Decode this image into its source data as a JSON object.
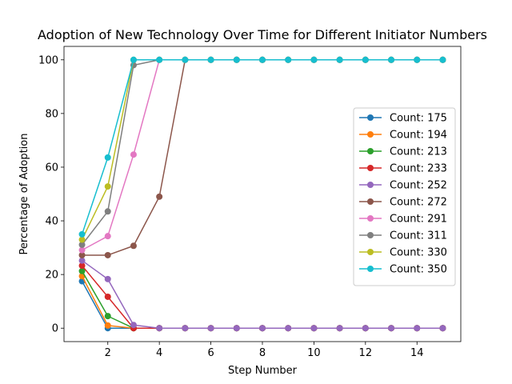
{
  "chart_data": {
    "type": "line",
    "title": "Adoption of New Technology Over Time for Different Initiator Numbers",
    "xlabel": "Step Number",
    "ylabel": "Percentage of Adoption",
    "xlim": [
      0.3,
      15.7
    ],
    "ylim": [
      -5,
      105
    ],
    "xticks": [
      2,
      4,
      6,
      8,
      10,
      12,
      14
    ],
    "yticks": [
      0,
      20,
      40,
      60,
      80,
      100
    ],
    "grid": false,
    "legend_position": "center-right",
    "x": [
      1,
      2,
      3,
      4,
      5,
      6,
      7,
      8,
      9,
      10,
      11,
      12,
      13,
      14,
      15
    ],
    "series": [
      {
        "name": "Count: 175",
        "color": "#1f77b4",
        "values": [
          17.5,
          0,
          0,
          0,
          0,
          0,
          0,
          0,
          0,
          0,
          0,
          0,
          0,
          0,
          0
        ]
      },
      {
        "name": "Count: 194",
        "color": "#ff7f0e",
        "values": [
          19.4,
          1.0,
          0,
          0,
          0,
          0,
          0,
          0,
          0,
          0,
          0,
          0,
          0,
          0,
          0
        ]
      },
      {
        "name": "Count: 213",
        "color": "#2ca02c",
        "values": [
          21.3,
          4.5,
          0,
          0,
          0,
          0,
          0,
          0,
          0,
          0,
          0,
          0,
          0,
          0,
          0
        ]
      },
      {
        "name": "Count: 233",
        "color": "#d62728",
        "values": [
          23.3,
          11.7,
          0,
          0,
          0,
          0,
          0,
          0,
          0,
          0,
          0,
          0,
          0,
          0,
          0
        ]
      },
      {
        "name": "Count: 252",
        "color": "#9467bd",
        "values": [
          25.2,
          18.3,
          1.2,
          0,
          0,
          0,
          0,
          0,
          0,
          0,
          0,
          0,
          0,
          0,
          0
        ]
      },
      {
        "name": "Count: 272",
        "color": "#8c564b",
        "values": [
          27.2,
          27.2,
          30.7,
          49.0,
          100,
          100,
          100,
          100,
          100,
          100,
          100,
          100,
          100,
          100,
          100
        ]
      },
      {
        "name": "Count: 291",
        "color": "#e377c2",
        "values": [
          29.1,
          34.3,
          64.7,
          100,
          100,
          100,
          100,
          100,
          100,
          100,
          100,
          100,
          100,
          100,
          100
        ]
      },
      {
        "name": "Count: 311",
        "color": "#7f7f7f",
        "values": [
          31.1,
          43.5,
          98.0,
          100,
          100,
          100,
          100,
          100,
          100,
          100,
          100,
          100,
          100,
          100,
          100
        ]
      },
      {
        "name": "Count: 330",
        "color": "#bcbd22",
        "values": [
          33.0,
          52.8,
          100,
          100,
          100,
          100,
          100,
          100,
          100,
          100,
          100,
          100,
          100,
          100,
          100
        ]
      },
      {
        "name": "Count: 350",
        "color": "#17becf",
        "values": [
          35.0,
          63.6,
          100,
          100,
          100,
          100,
          100,
          100,
          100,
          100,
          100,
          100,
          100,
          100,
          100
        ]
      }
    ]
  }
}
